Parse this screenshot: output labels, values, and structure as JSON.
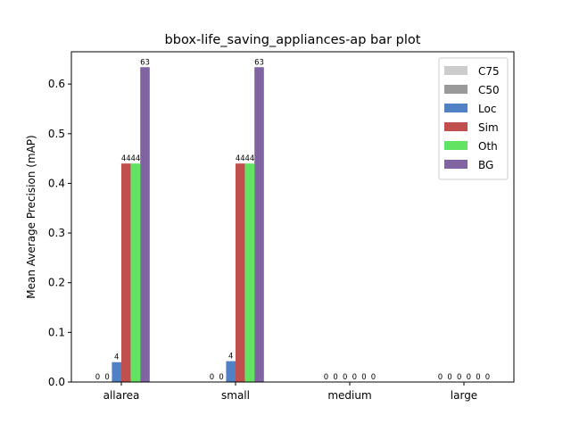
{
  "chart_data": {
    "type": "bar",
    "title": "bbox-life_saving_appliances-ap bar plot",
    "xlabel": "",
    "ylabel": "Mean Average Precision (mAP)",
    "ylim": [
      0,
      0.665
    ],
    "yticks": [
      0.0,
      0.1,
      0.2,
      0.3,
      0.4,
      0.5,
      0.6
    ],
    "ytick_labels": [
      "0.0",
      "0.1",
      "0.2",
      "0.3",
      "0.4",
      "0.5",
      "0.6"
    ],
    "categories": [
      "allarea",
      "small",
      "medium",
      "large"
    ],
    "grid": false,
    "legend_position": "top-right",
    "series": [
      {
        "name": "C75",
        "color": "#cccccc",
        "values": [
          0,
          0,
          0,
          0
        ],
        "labels": [
          "0",
          "0",
          "0",
          "0"
        ]
      },
      {
        "name": "C50",
        "color": "#999999",
        "values": [
          0,
          0,
          0,
          0
        ],
        "labels": [
          "0",
          "0",
          "0",
          "0"
        ]
      },
      {
        "name": "Loc",
        "color": "#4f81c4",
        "values": [
          0.04,
          0.042,
          0,
          0
        ],
        "labels": [
          "4",
          "4",
          "0",
          "0"
        ]
      },
      {
        "name": "Sim",
        "color": "#c0504d",
        "values": [
          0.44,
          0.44,
          0,
          0
        ],
        "labels": [
          "44",
          "44",
          "0",
          "0"
        ]
      },
      {
        "name": "Oth",
        "color": "#62e462",
        "values": [
          0.44,
          0.44,
          0,
          0
        ],
        "labels": [
          "44",
          "44",
          "0",
          "0"
        ]
      },
      {
        "name": "BG",
        "color": "#8064a2",
        "values": [
          0.634,
          0.634,
          0,
          0
        ],
        "labels": [
          "63",
          "63",
          "0",
          "0"
        ]
      }
    ]
  }
}
